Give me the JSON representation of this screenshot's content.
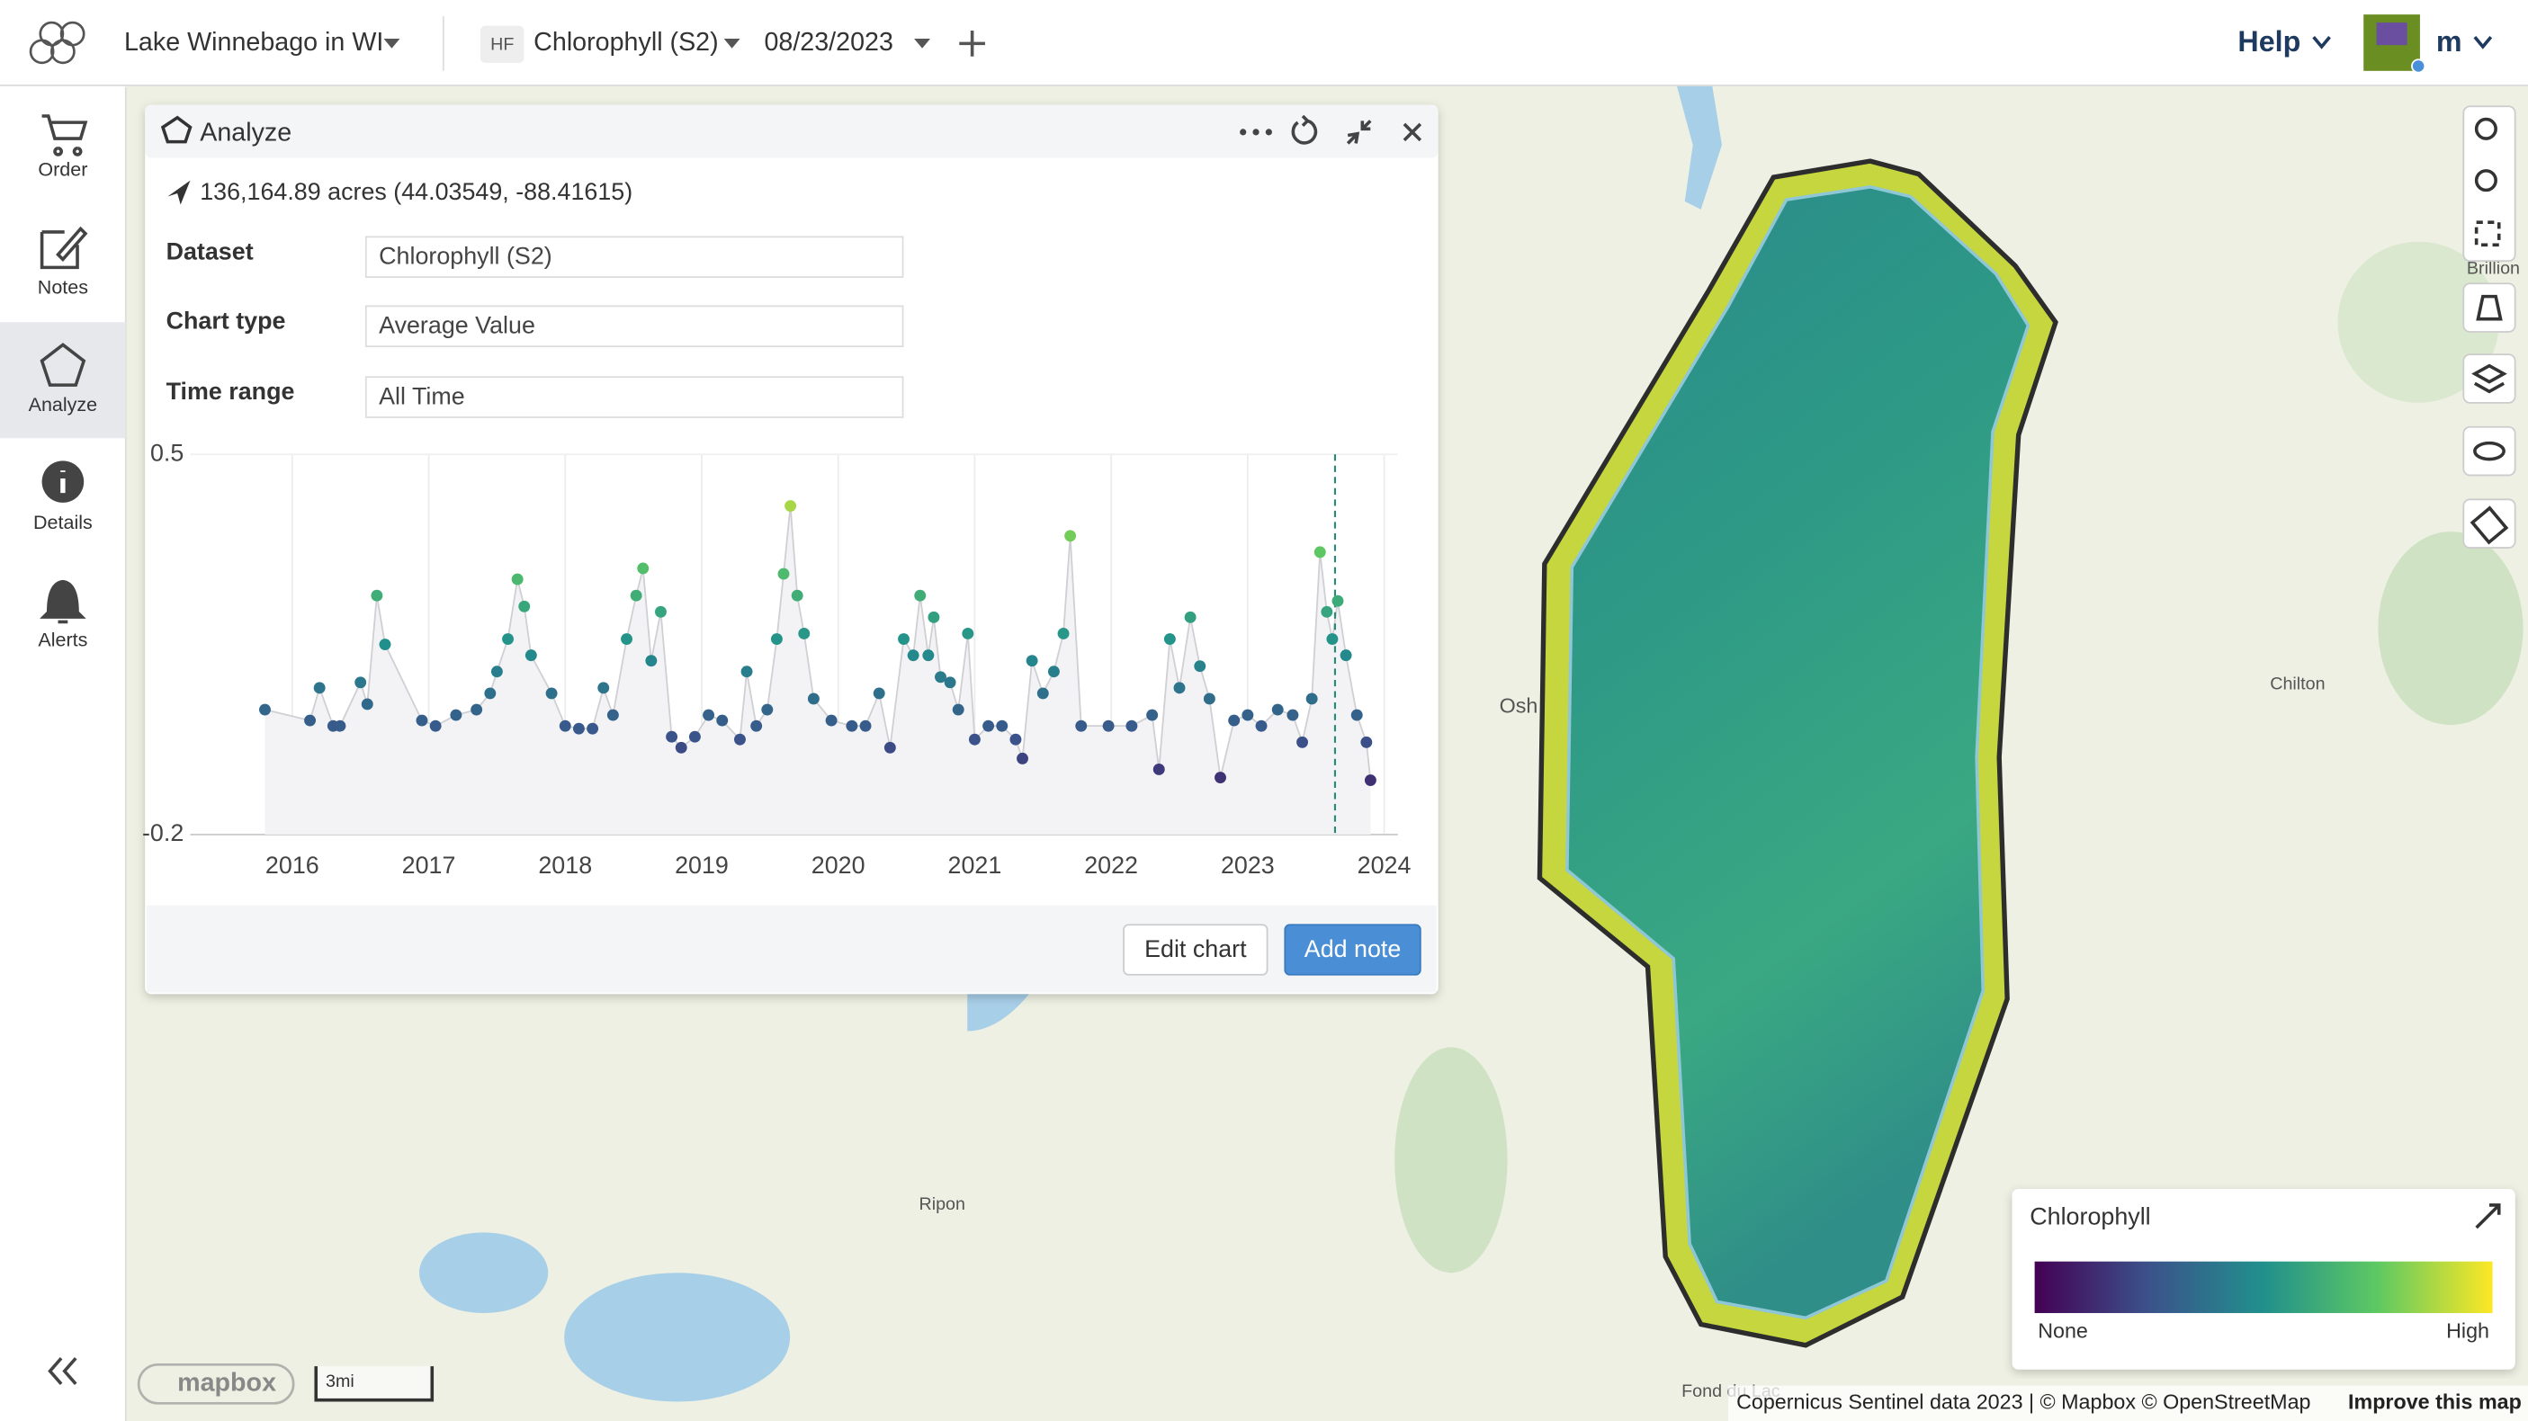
{
  "topbar": {
    "project": "Lake Winnebago in WI",
    "badge": "HF",
    "layer": "Chlorophyll (S2)",
    "date": "08/23/2023",
    "help": "Help",
    "user": "m"
  },
  "sidebar": {
    "items": [
      "Order",
      "Notes",
      "Analyze",
      "Details",
      "Alerts"
    ]
  },
  "panel": {
    "title": "Analyze",
    "area": "136,164.89 acres (44.03549, -88.41615)",
    "fields": [
      {
        "label": "Dataset",
        "value": "Chlorophyll (S2)"
      },
      {
        "label": "Chart type",
        "value": "Average Value"
      },
      {
        "label": "Time range",
        "value": "All Time"
      }
    ],
    "buttons": [
      "Edit chart",
      "Add note"
    ]
  },
  "chart_data": {
    "type": "scatter",
    "x": [
      2015.8,
      2016.13,
      2016.2,
      2016.3,
      2016.35,
      2016.5,
      2016.55,
      2016.62,
      2016.68,
      2016.95,
      2017.05,
      2017.2,
      2017.35,
      2017.45,
      2017.5,
      2017.58,
      2017.65,
      2017.7,
      2017.75,
      2017.9,
      2018.0,
      2018.1,
      2018.2,
      2018.28,
      2018.35,
      2018.45,
      2018.52,
      2018.57,
      2018.63,
      2018.7,
      2018.78,
      2018.85,
      2018.95,
      2019.05,
      2019.15,
      2019.28,
      2019.33,
      2019.4,
      2019.48,
      2019.55,
      2019.6,
      2019.65,
      2019.7,
      2019.75,
      2019.82,
      2019.95,
      2020.1,
      2020.2,
      2020.3,
      2020.38,
      2020.48,
      2020.55,
      2020.6,
      2020.66,
      2020.7,
      2020.75,
      2020.82,
      2020.88,
      2020.95,
      2021.0,
      2021.1,
      2021.2,
      2021.3,
      2021.35,
      2021.42,
      2021.5,
      2021.58,
      2021.65,
      2021.7,
      2021.78,
      2021.98,
      2022.15,
      2022.3,
      2022.35,
      2022.43,
      2022.5,
      2022.58,
      2022.65,
      2022.72,
      2022.8,
      2022.9,
      2023.0,
      2023.1,
      2023.22,
      2023.33,
      2023.4,
      2023.47,
      2023.53,
      2023.58,
      2023.62,
      2023.66,
      2023.72,
      2023.8,
      2023.87,
      2023.9
    ],
    "values": [
      0.03,
      0.01,
      0.07,
      0.0,
      0.0,
      0.08,
      0.04,
      0.24,
      0.15,
      0.01,
      0.0,
      0.02,
      0.03,
      0.06,
      0.1,
      0.16,
      0.27,
      0.22,
      0.13,
      0.06,
      0.0,
      -0.005,
      -0.005,
      0.07,
      0.02,
      0.16,
      0.24,
      0.29,
      0.12,
      0.21,
      -0.02,
      -0.04,
      -0.02,
      0.02,
      0.01,
      -0.025,
      0.1,
      0.0,
      0.03,
      0.16,
      0.28,
      0.405,
      0.24,
      0.17,
      0.05,
      0.01,
      0.0,
      0.0,
      0.06,
      -0.04,
      0.16,
      0.13,
      0.24,
      0.13,
      0.2,
      0.09,
      0.08,
      0.03,
      0.17,
      -0.025,
      0.0,
      0.0,
      -0.025,
      -0.06,
      0.12,
      0.06,
      0.1,
      0.17,
      0.35,
      0.0,
      0.0,
      0.0,
      0.02,
      -0.08,
      0.16,
      0.07,
      0.2,
      0.11,
      0.05,
      -0.095,
      0.01,
      0.02,
      0.0,
      0.03,
      0.02,
      -0.03,
      0.05,
      0.32,
      0.21,
      0.16,
      0.23,
      0.13,
      0.02,
      -0.03,
      -0.1
    ],
    "xlim": [
      2015.3,
      2024.1
    ],
    "ylim": [
      -0.2,
      0.5
    ],
    "xticks": [
      2016,
      2017,
      2018,
      2019,
      2020,
      2021,
      2022,
      2023,
      2024
    ],
    "yticks": [
      -0.2,
      0.5
    ],
    "grid": true,
    "selected_x": 2023.64,
    "colormap": [
      "#440154",
      "#3b528b",
      "#21908c",
      "#5ec962",
      "#fde725"
    ]
  },
  "map": {
    "places": [
      "Osh",
      "Chilton",
      "Ripon",
      "Brillion",
      "Fond du Lac"
    ],
    "scale": "3mi",
    "logo": "mapbox",
    "attribution": "Copernicus Sentinel data 2023 | © Mapbox © OpenStreetMap",
    "improve": "Improve this map",
    "legend": {
      "title": "Chlorophyll",
      "low": "None",
      "high": "High"
    }
  }
}
